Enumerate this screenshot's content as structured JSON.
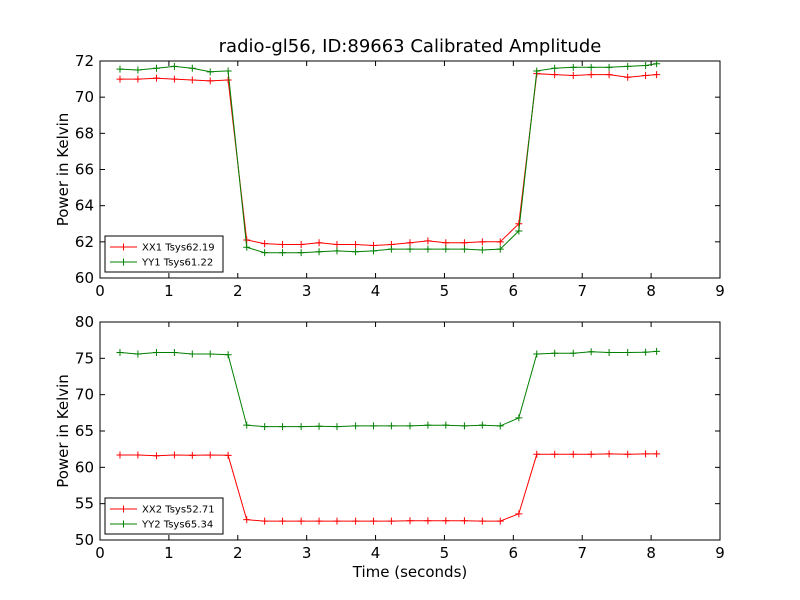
{
  "figure": {
    "title": "radio-gl56, ID:89663 Calibrated Amplitude",
    "xlabel": "Time (seconds)"
  },
  "chart_data": [
    {
      "type": "line",
      "ylabel": "Power in Kelvin",
      "xlim": [
        0,
        9
      ],
      "ylim": [
        60,
        72
      ],
      "xticks": [
        "0",
        "1",
        "2",
        "3",
        "4",
        "5",
        "6",
        "7",
        "8",
        "9"
      ],
      "yticks": [
        "60",
        "62",
        "64",
        "66",
        "68",
        "70",
        "72"
      ],
      "legend_position": "lower-left",
      "x": [
        0.29,
        0.55,
        0.82,
        1.08,
        1.34,
        1.6,
        1.86,
        2.13,
        2.39,
        2.65,
        2.92,
        3.18,
        3.44,
        3.71,
        3.97,
        4.23,
        4.5,
        4.76,
        5.02,
        5.29,
        5.55,
        5.81,
        6.08,
        6.34,
        6.6,
        6.87,
        7.13,
        7.39,
        7.66,
        7.92,
        8.08
      ],
      "series": [
        {
          "name": "XX1 Tsys62.19",
          "color": "#ff0000",
          "values": [
            71.0,
            71.0,
            71.05,
            71.0,
            70.95,
            70.9,
            70.95,
            62.1,
            61.9,
            61.85,
            61.85,
            61.95,
            61.85,
            61.85,
            61.8,
            61.85,
            61.95,
            62.05,
            61.95,
            61.95,
            62.0,
            62.0,
            63.0,
            71.3,
            71.25,
            71.2,
            71.25,
            71.25,
            71.1,
            71.2,
            71.25
          ]
        },
        {
          "name": "YY1 Tsys61.22",
          "color": "#008000",
          "values": [
            71.55,
            71.5,
            71.6,
            71.7,
            71.6,
            71.4,
            71.45,
            61.7,
            61.4,
            61.4,
            61.4,
            61.45,
            61.5,
            61.45,
            61.5,
            61.6,
            61.6,
            61.6,
            61.6,
            61.6,
            61.55,
            61.6,
            62.6,
            71.45,
            71.6,
            71.65,
            71.65,
            71.65,
            71.7,
            71.75,
            71.85
          ]
        }
      ]
    },
    {
      "type": "line",
      "ylabel": "Power in Kelvin",
      "xlabel": "Time (seconds)",
      "xlim": [
        0,
        9
      ],
      "ylim": [
        50,
        80
      ],
      "xticks": [
        "0",
        "1",
        "2",
        "3",
        "4",
        "5",
        "6",
        "7",
        "8",
        "9"
      ],
      "yticks": [
        "50",
        "55",
        "60",
        "65",
        "70",
        "75",
        "80"
      ],
      "legend_position": "lower-left",
      "x": [
        0.29,
        0.55,
        0.82,
        1.08,
        1.34,
        1.6,
        1.86,
        2.13,
        2.39,
        2.65,
        2.92,
        3.18,
        3.44,
        3.71,
        3.97,
        4.23,
        4.5,
        4.76,
        5.02,
        5.29,
        5.55,
        5.81,
        6.08,
        6.34,
        6.6,
        6.87,
        7.13,
        7.39,
        7.66,
        7.92,
        8.08
      ],
      "series": [
        {
          "name": "XX2 Tsys52.71",
          "color": "#ff0000",
          "values": [
            61.7,
            61.7,
            61.6,
            61.7,
            61.65,
            61.7,
            61.65,
            52.8,
            52.6,
            52.6,
            52.6,
            52.6,
            52.6,
            52.6,
            52.6,
            52.6,
            52.65,
            52.65,
            52.65,
            52.65,
            52.6,
            52.6,
            53.6,
            61.8,
            61.8,
            61.8,
            61.8,
            61.85,
            61.8,
            61.85,
            61.85
          ]
        },
        {
          "name": "YY2 Tsys65.34",
          "color": "#008000",
          "values": [
            75.8,
            75.6,
            75.8,
            75.8,
            75.6,
            75.6,
            75.5,
            65.8,
            65.6,
            65.6,
            65.6,
            65.65,
            65.6,
            65.7,
            65.7,
            65.7,
            65.7,
            65.8,
            65.8,
            65.7,
            65.8,
            65.7,
            66.8,
            75.6,
            75.7,
            75.7,
            75.9,
            75.8,
            75.8,
            75.85,
            75.95
          ]
        }
      ]
    }
  ]
}
